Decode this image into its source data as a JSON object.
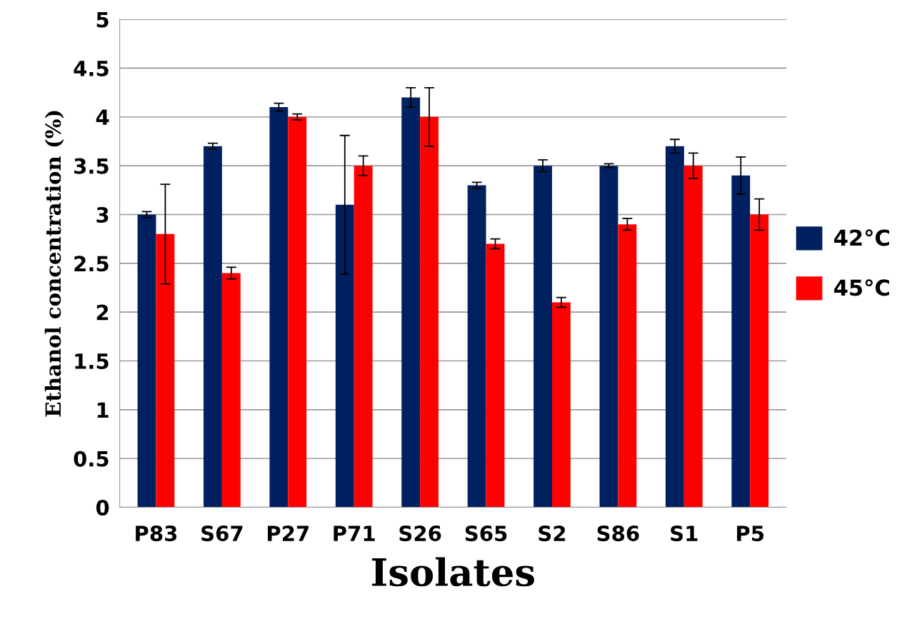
{
  "chart_data": {
    "type": "bar",
    "xlabel": "Isolates",
    "ylabel": "Ethanol concentration (%)",
    "categories": [
      "P83",
      "S67",
      "P27",
      "P71",
      "S26",
      "S65",
      "S2",
      "S86",
      "S1",
      "P5"
    ],
    "series": [
      {
        "name": "42°C",
        "color": "#002060",
        "values": [
          3.0,
          3.7,
          4.1,
          3.1,
          4.2,
          3.3,
          3.5,
          3.5,
          3.7,
          3.4
        ],
        "errors": [
          0.03,
          0.03,
          0.04,
          0.71,
          0.1,
          0.03,
          0.06,
          0.02,
          0.07,
          0.19
        ]
      },
      {
        "name": "45°C",
        "color": "#ff0000",
        "values": [
          2.8,
          2.4,
          4.0,
          3.5,
          4.0,
          2.7,
          2.1,
          2.9,
          3.5,
          3.0
        ],
        "errors": [
          0.51,
          0.06,
          0.03,
          0.1,
          0.3,
          0.05,
          0.05,
          0.06,
          0.13,
          0.16
        ]
      }
    ],
    "ylim": [
      0,
      5
    ],
    "yticks": [
      0,
      0.5,
      1,
      1.5,
      2,
      2.5,
      3,
      3.5,
      4,
      4.5,
      5
    ],
    "grid": "y",
    "legend": "right"
  }
}
